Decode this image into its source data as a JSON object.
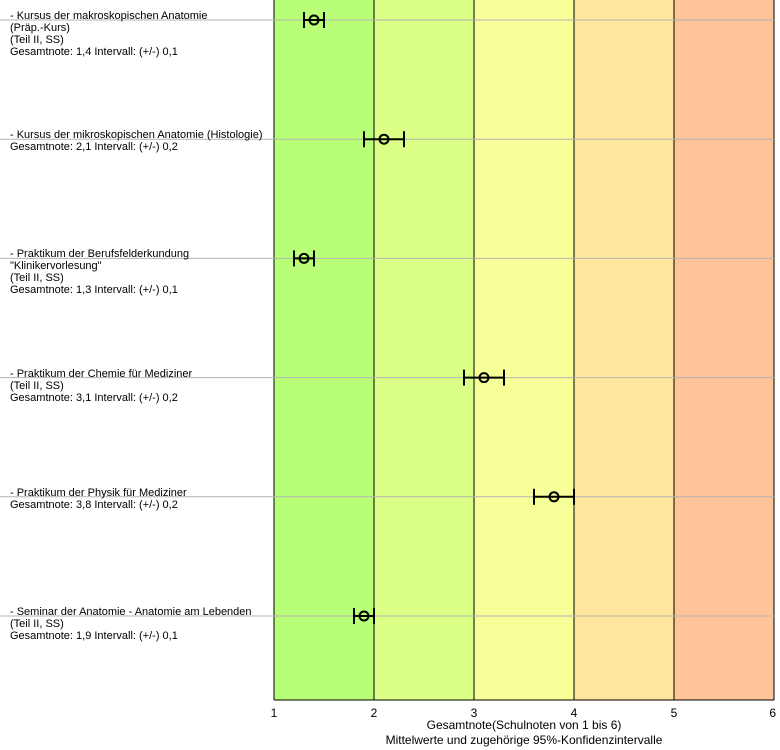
{
  "chart_data": {
    "type": "scatter",
    "orientation": "horizontal",
    "xlabel": "Gesamtnote(Schulnoten von 1 bis 6)",
    "subtitle": "Mittelwerte und zugehörige 95%-Konfidenzintervalle",
    "xlim": [
      1,
      6
    ],
    "xticks": [
      "1",
      "2",
      "3",
      "4",
      "5",
      "6"
    ],
    "band_colors": [
      "#b8ff77",
      "#dcff88",
      "#f7ff99",
      "#ffe69f",
      "#ffc599"
    ],
    "items": [
      {
        "label_lines": [
          "- Kursus der makroskopischen Anatomie",
          "(Präp.-Kurs)",
          "(Teil II, SS)",
          "Gesamtnote: 1,4 Intervall: (+/-) 0,1"
        ],
        "mean": 1.4,
        "ci": 0.1
      },
      {
        "label_lines": [
          "- Kursus der mikroskopischen Anatomie (Histologie)",
          "Gesamtnote: 2,1 Intervall: (+/-) 0,2"
        ],
        "mean": 2.1,
        "ci": 0.2
      },
      {
        "label_lines": [
          "- Praktikum der Berufsfelderkundung",
          "\"Klinikervorlesung\"",
          "(Teil II, SS)",
          "Gesamtnote: 1,3 Intervall: (+/-) 0,1"
        ],
        "mean": 1.3,
        "ci": 0.1
      },
      {
        "label_lines": [
          "- Praktikum der Chemie für Mediziner",
          "(Teil II, SS)",
          "Gesamtnote: 3,1 Intervall: (+/-) 0,2"
        ],
        "mean": 3.1,
        "ci": 0.2
      },
      {
        "label_lines": [
          "- Praktikum der Physik für Mediziner",
          "Gesamtnote: 3,8 Intervall: (+/-) 0,2"
        ],
        "mean": 3.8,
        "ci": 0.2
      },
      {
        "label_lines": [
          "- Seminar der Anatomie - Anatomie am Lebenden",
          "(Teil II, SS)",
          "Gesamtnote: 1,9 Intervall: (+/-) 0,1"
        ],
        "mean": 1.9,
        "ci": 0.1
      }
    ]
  }
}
